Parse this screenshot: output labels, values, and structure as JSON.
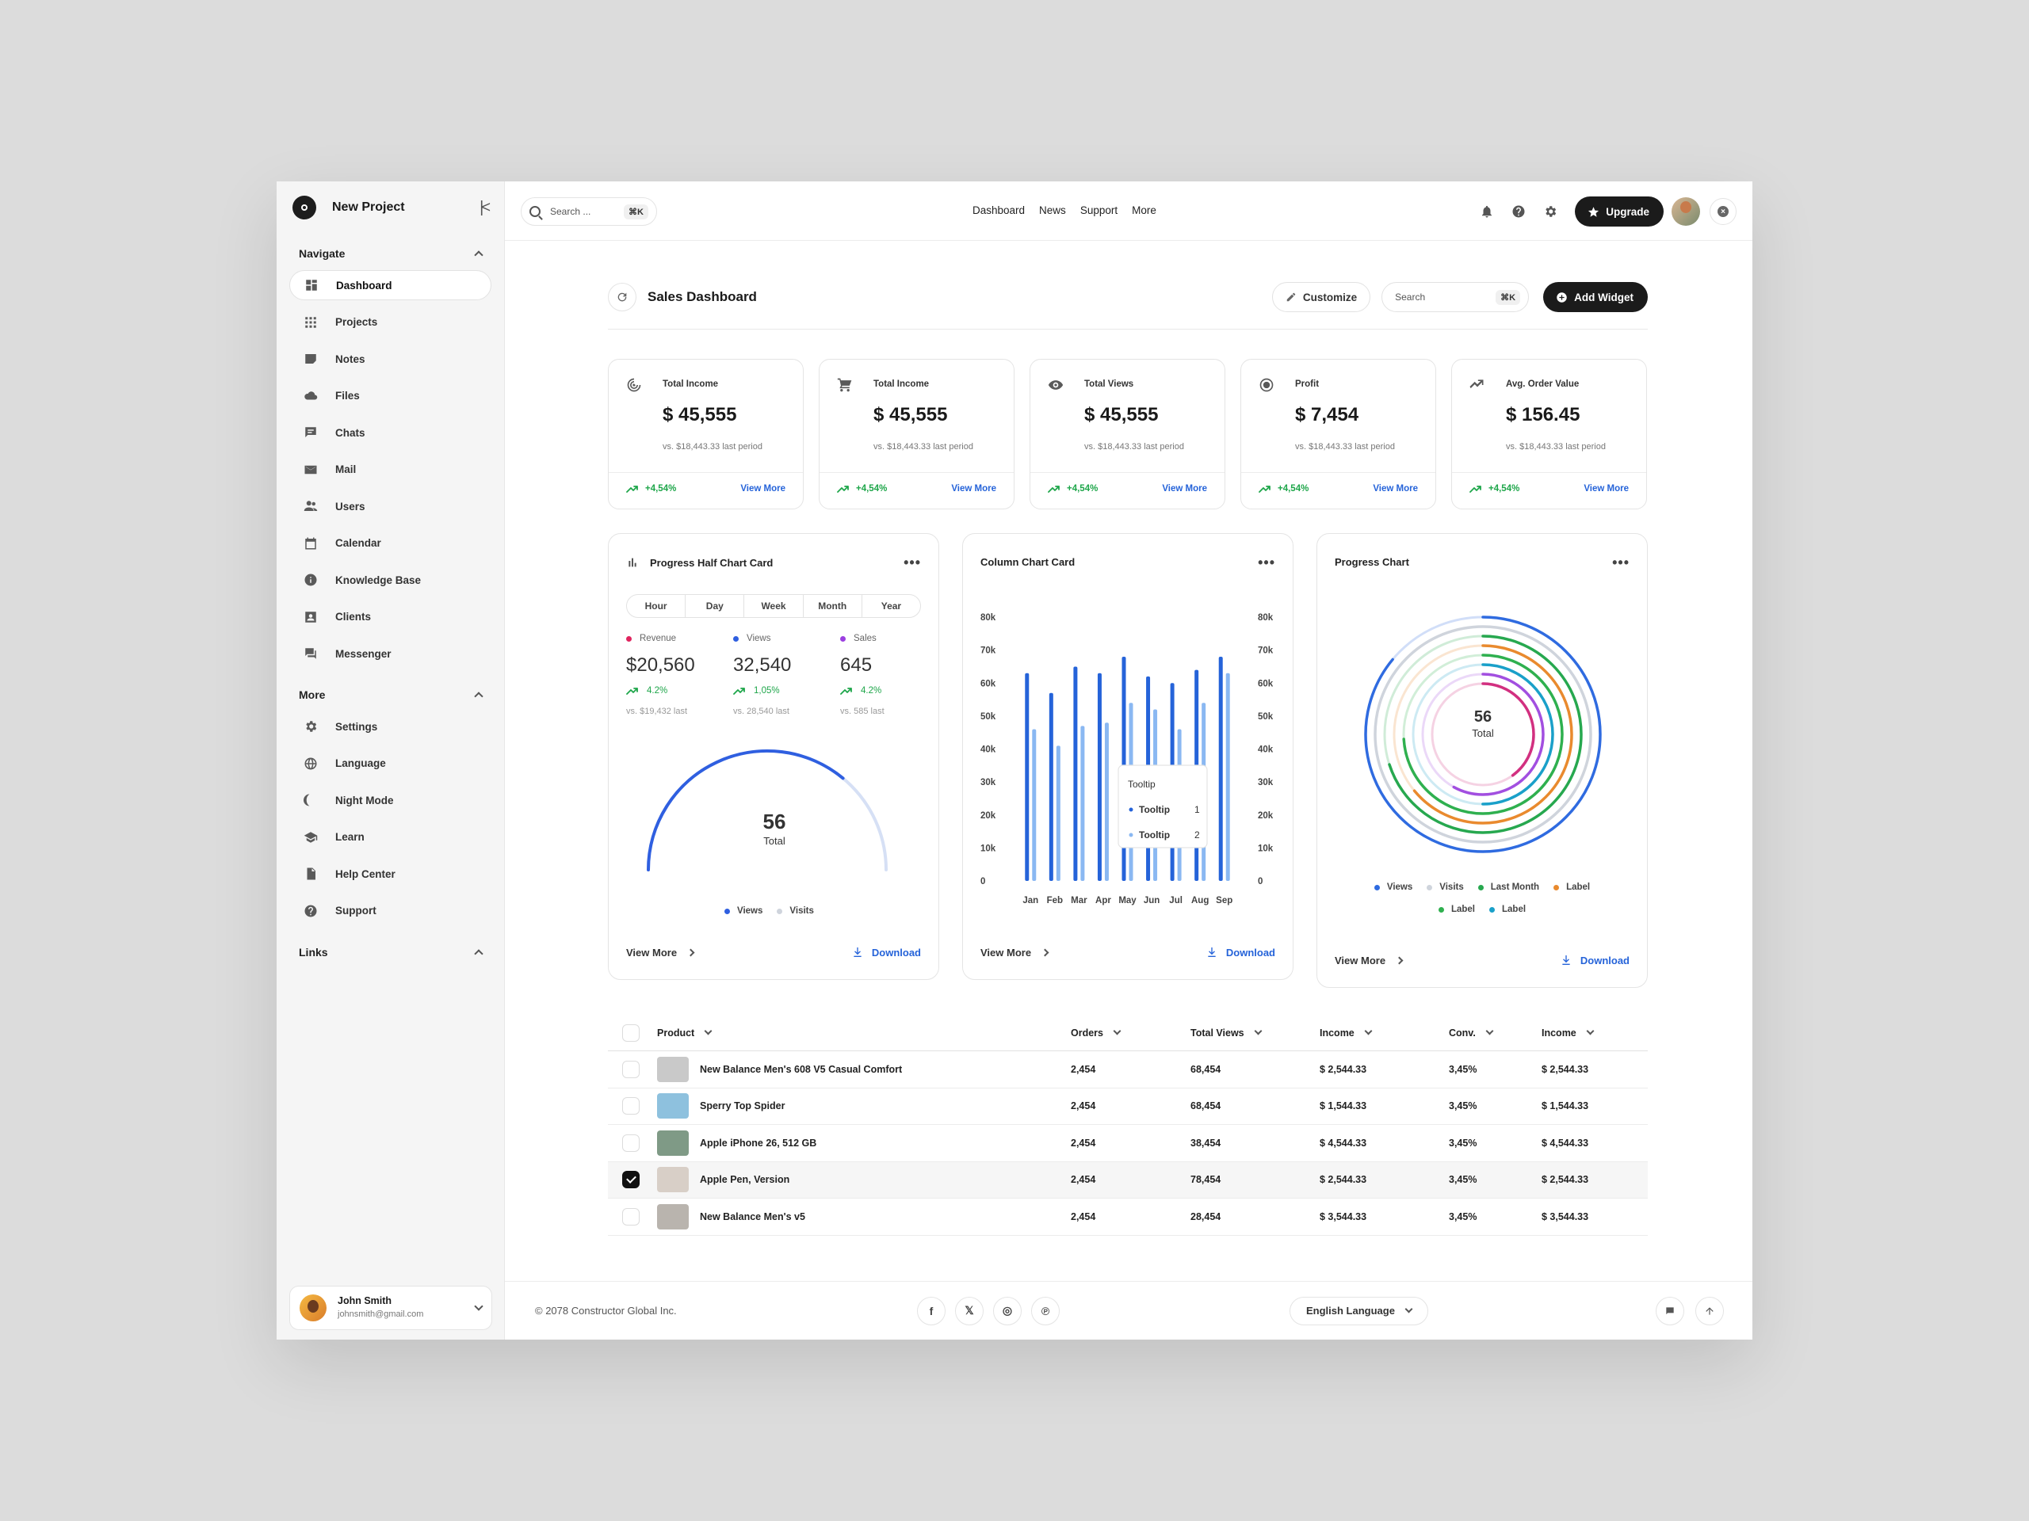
{
  "app": {
    "project_name": "New Project"
  },
  "sidebar": {
    "navigate_title": "Navigate",
    "nav_items": [
      {
        "label": "Dashboard",
        "icon": "dashboard-icon",
        "active": true
      },
      {
        "label": "Projects",
        "icon": "grid-icon"
      },
      {
        "label": "Notes",
        "icon": "note-icon"
      },
      {
        "label": "Files",
        "icon": "cloud-icon"
      },
      {
        "label": "Chats",
        "icon": "chat-icon"
      },
      {
        "label": "Mail",
        "icon": "mail-icon"
      },
      {
        "label": "Users",
        "icon": "users-icon"
      },
      {
        "label": "Calendar",
        "icon": "calendar-icon"
      },
      {
        "label": "Knowledge Base",
        "icon": "info-icon"
      },
      {
        "label": "Clients",
        "icon": "contact-icon"
      },
      {
        "label": "Messenger",
        "icon": "messenger-icon"
      }
    ],
    "more_title": "More",
    "more_items": [
      {
        "label": "Settings",
        "icon": "gear-icon"
      },
      {
        "label": "Language",
        "icon": "globe-icon"
      },
      {
        "label": "Night Mode",
        "icon": "moon-icon"
      },
      {
        "label": "Learn",
        "icon": "graduation-icon"
      },
      {
        "label": "Help Center",
        "icon": "document-icon"
      },
      {
        "label": "Support",
        "icon": "help-icon"
      }
    ],
    "links_title": "Links",
    "user": {
      "name": "John Smith",
      "email": "johnsmith@gmail.com"
    }
  },
  "topbar": {
    "search_placeholder": "Search ...",
    "search_shortcut": "⌘K",
    "nav": [
      "Dashboard",
      "News",
      "Support",
      "More"
    ],
    "upgrade_label": "Upgrade"
  },
  "page": {
    "title": "Sales Dashboard",
    "customize_label": "Customize",
    "search_placeholder": "Search",
    "search_shortcut": "⌘K",
    "add_widget_label": "Add Widget"
  },
  "stats": [
    {
      "label": "Total Income",
      "value": "$ 45,555",
      "compare": "vs. $18,443.33 last period",
      "trend": "+4,54%",
      "link": "View More",
      "icon": "target-icon"
    },
    {
      "label": "Total Income",
      "value": "$ 45,555",
      "compare": "vs. $18,443.33 last period",
      "trend": "+4,54%",
      "link": "View More",
      "icon": "cart-icon"
    },
    {
      "label": "Total Views",
      "value": "$ 45,555",
      "compare": "vs. $18,443.33 last period",
      "trend": "+4,54%",
      "link": "View More",
      "icon": "eye-icon"
    },
    {
      "label": "Profit",
      "value": "$ 7,454",
      "compare": "vs. $18,443.33 last period",
      "trend": "+4,54%",
      "link": "View More",
      "icon": "radio-icon"
    },
    {
      "label": "Avg. Order Value",
      "value": "$ 156.45",
      "compare": "vs. $18,443.33 last period",
      "trend": "+4,54%",
      "link": "View More",
      "icon": "trend-icon"
    }
  ],
  "half_card": {
    "title": "Progress Half Chart Card",
    "tabs": [
      "Hour",
      "Day",
      "Week",
      "Month",
      "Year"
    ],
    "kpis": [
      {
        "label": "Revenue",
        "value": "$20,560",
        "change": "4.2%",
        "compare": "vs. $19,432 last",
        "color": "#e0245e"
      },
      {
        "label": "Views",
        "value": "32,540",
        "change": "1,05%",
        "compare": "vs. 28,540 last",
        "color": "#2f5fe0"
      },
      {
        "label": "Sales",
        "value": "645",
        "change": "4.2%",
        "compare": "vs. 585 last",
        "color": "#9b3fe0"
      }
    ],
    "total_value": "56",
    "total_label": "Total",
    "progress": 0.72,
    "legend": [
      "Views",
      "Visits"
    ],
    "view_more": "View More",
    "download": "Download"
  },
  "column_card": {
    "title": "Column Chart Card",
    "tooltip_title": "Tooltip",
    "tooltip_rows": [
      {
        "label": "Tooltip",
        "value": "1"
      },
      {
        "label": "Tooltip",
        "value": "2"
      }
    ],
    "view_more": "View More",
    "download": "Download"
  },
  "chart_data": {
    "type": "bar",
    "title": "Column Chart Card",
    "categories": [
      "Jan",
      "Feb",
      "Mar",
      "Apr",
      "May",
      "Jun",
      "Jul",
      "Aug",
      "Sep"
    ],
    "series": [
      {
        "values": [
          63,
          57,
          65,
          63,
          68,
          62,
          60,
          64,
          68
        ]
      },
      {
        "values": [
          46,
          41,
          47,
          48,
          54,
          52,
          46,
          54,
          63
        ]
      }
    ],
    "yticks": [
      "0",
      "10k",
      "20k",
      "30k",
      "40k",
      "50k",
      "60k",
      "70k",
      "80k"
    ],
    "ylim": [
      0,
      80
    ],
    "colors": [
      "#2563d9",
      "#8ab8f2"
    ]
  },
  "progress_card": {
    "title": "Progress Chart",
    "total_value": "56",
    "total_label": "Total",
    "rings": [
      {
        "name": "Views",
        "color": "#2f6be0",
        "progress": 0.14
      },
      {
        "name": "Visits",
        "color": "#cfd4dc",
        "progress": 0.0
      },
      {
        "name": "Last Month",
        "color": "#27a84f",
        "progress": 0.3
      },
      {
        "name": "Label",
        "color": "#e98a2e",
        "progress": 0.36
      },
      {
        "name": "Label",
        "color": "#2fb04f",
        "progress": 0.26
      },
      {
        "name": "Label",
        "color": "#1aa0c9",
        "progress": 0.5
      },
      {
        "name": "",
        "color": "#a24fe0",
        "progress": 0.42
      },
      {
        "name": "",
        "color": "#d23080",
        "progress": 0.6
      }
    ],
    "legend": [
      {
        "label": "Views",
        "color": "#2f6be0"
      },
      {
        "label": "Visits",
        "color": "#cfd4dc"
      },
      {
        "label": "Last Month",
        "color": "#27a84f"
      },
      {
        "label": "Label",
        "color": "#e98a2e"
      },
      {
        "label": "Label",
        "color": "#2fb04f"
      },
      {
        "label": "Label",
        "color": "#1aa0c9"
      }
    ],
    "view_more": "View More",
    "download": "Download"
  },
  "table": {
    "headers": [
      "Product",
      "Orders",
      "Total Views",
      "Income",
      "Conv.",
      "Income"
    ],
    "rows": [
      {
        "product": "New Balance Men's 608 V5 Casual Comfort",
        "orders": "2,454",
        "views": "68,454",
        "income": "$ 2,544.33",
        "conv": "3,45%",
        "income2": "$ 2,544.33",
        "selected": false,
        "thumb": "#c9c9c9"
      },
      {
        "product": "Sperry Top Spider",
        "orders": "2,454",
        "views": "68,454",
        "income": "$ 1,544.33",
        "conv": "3,45%",
        "income2": "$ 1,544.33",
        "selected": false,
        "thumb": "#8ec1de"
      },
      {
        "product": "Apple iPhone 26, 512 GB",
        "orders": "2,454",
        "views": "38,454",
        "income": "$ 4,544.33",
        "conv": "3,45%",
        "income2": "$ 4,544.33",
        "selected": false,
        "thumb": "#7f9a86"
      },
      {
        "product": "Apple Pen, Version",
        "orders": "2,454",
        "views": "78,454",
        "income": "$ 2,544.33",
        "conv": "3,45%",
        "income2": "$ 2,544.33",
        "selected": true,
        "thumb": "#d8cfc7"
      },
      {
        "product": "New Balance Men's v5",
        "orders": "2,454",
        "views": "28,454",
        "income": "$ 3,544.33",
        "conv": "3,45%",
        "income2": "$ 3,544.33",
        "selected": false,
        "thumb": "#b9b4ae"
      }
    ]
  },
  "footer": {
    "copyright": "© 2078 Constructor Global Inc.",
    "language": "English Language",
    "socials": [
      "f",
      "𝕏",
      "◎",
      "℗"
    ]
  }
}
